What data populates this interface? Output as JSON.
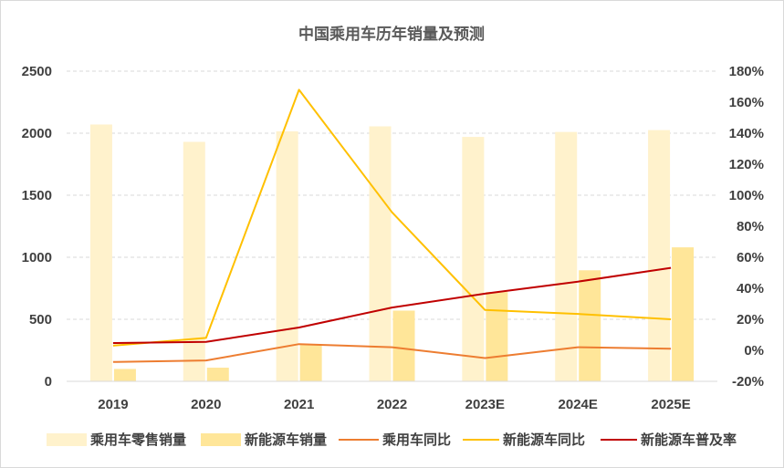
{
  "chart_data": {
    "type": "bar",
    "title": "中国乘用车历年销量及预测",
    "categories": [
      "2019",
      "2020",
      "2021",
      "2022",
      "2023E",
      "2024E",
      "2025E"
    ],
    "y_left": {
      "range": [
        0,
        2500
      ],
      "ticks": [
        "0",
        "500",
        "1000",
        "1500",
        "2000",
        "2500"
      ]
    },
    "y_right": {
      "range": [
        -20,
        180
      ],
      "ticks": [
        "-20%",
        "0%",
        "20%",
        "40%",
        "60%",
        "80%",
        "100%",
        "120%",
        "140%",
        "160%",
        "180%"
      ]
    },
    "grid": true,
    "legend_position": "bottom",
    "series": [
      {
        "name": "乘用车零售销量",
        "type": "bar",
        "axis": "left",
        "color": "#fff2cc",
        "values": [
          2070,
          1930,
          2015,
          2055,
          1970,
          2010,
          2025
        ]
      },
      {
        "name": "新能源车销量",
        "type": "bar",
        "axis": "left",
        "color": "#ffe699",
        "values": [
          100,
          110,
          300,
          570,
          720,
          895,
          1080
        ]
      },
      {
        "name": "乘用车同比",
        "type": "line",
        "axis": "right",
        "color": "#ed7d31",
        "values": [
          -7.5,
          -6.5,
          4.0,
          2.0,
          -5.0,
          2.0,
          1.0
        ]
      },
      {
        "name": "新能源车同比",
        "type": "line",
        "axis": "right",
        "color": "#ffc000",
        "values": [
          3.0,
          8.0,
          168.0,
          89.0,
          26.0,
          23.5,
          20.0
        ]
      },
      {
        "name": "新能源车普及率",
        "type": "line",
        "axis": "right",
        "color": "#c00000",
        "values": [
          4.7,
          5.4,
          14.7,
          27.6,
          36.5,
          44.3,
          53.2
        ]
      }
    ]
  }
}
